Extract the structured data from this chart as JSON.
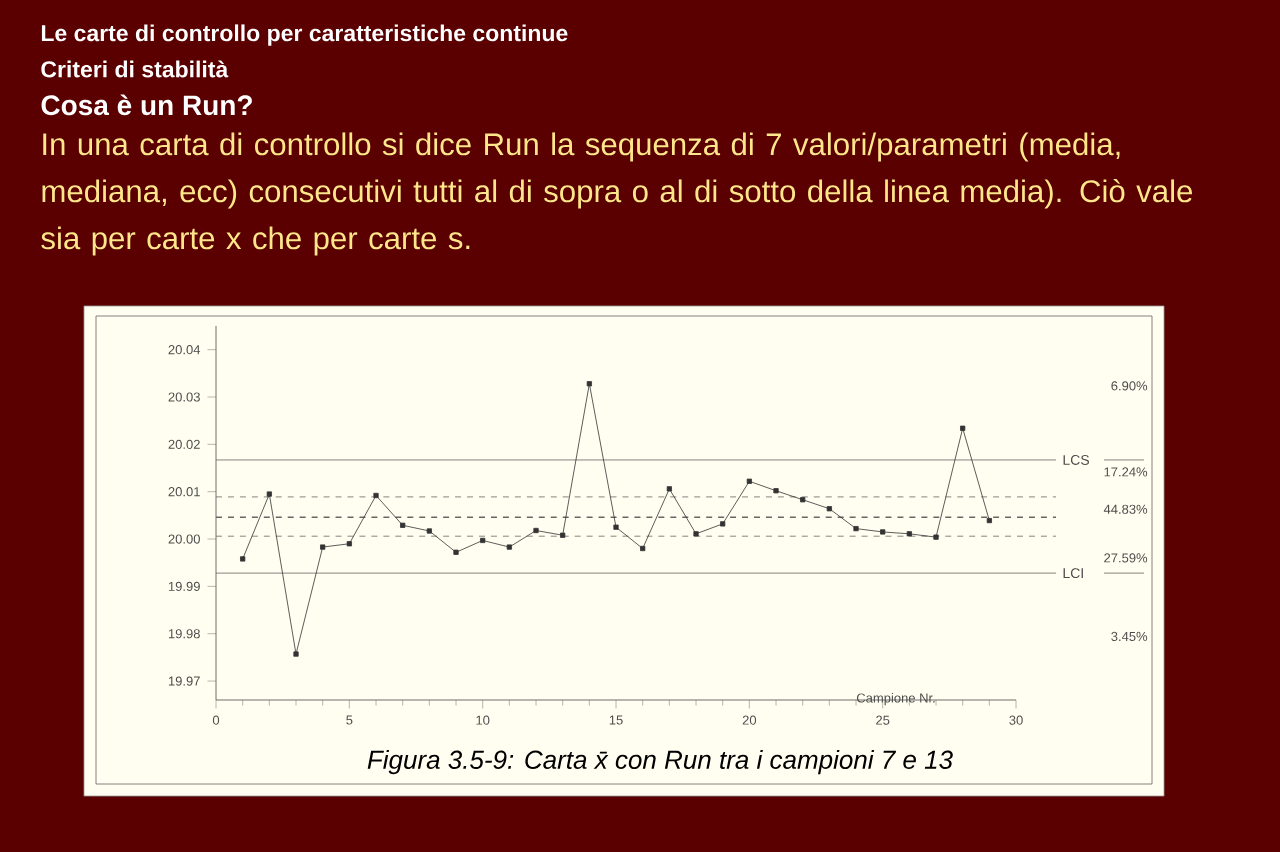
{
  "chart_data": {
    "type": "line",
    "title": "Le carte di controllo per caratteristiche continue",
    "subtitle": "Criteri di stabilità",
    "xlabel": "Campione Nr.",
    "x": [
      1,
      2,
      3,
      4,
      5,
      6,
      7,
      8,
      9,
      10,
      11,
      12,
      13,
      14,
      15,
      16,
      17,
      18,
      19,
      20,
      21,
      22,
      23,
      24,
      25,
      26,
      27,
      28,
      29
    ],
    "series": [
      {
        "color": "#333333",
        "values": [
          19.9958,
          20.0095,
          19.9757,
          19.9983,
          19.999,
          20.0092,
          20.0029,
          20.0017,
          19.9972,
          19.9997,
          19.9983,
          20.0018,
          20.0008,
          20.0328,
          20.0025,
          19.998,
          20.0106,
          20.0011,
          20.0032,
          20.0122,
          20.0102,
          20.0083,
          20.0064,
          20.0022,
          20.0015,
          20.0011,
          20.0004,
          20.0234,
          20.0039
        ]
      }
    ],
    "marker": "square",
    "line_style": "solid",
    "grid": false,
    "xlim": [
      0,
      30
    ],
    "xticks": [
      0,
      5,
      10,
      15,
      20,
      25,
      30
    ],
    "ylim": [
      19.966,
      20.045
    ],
    "yticks": [
      19.97,
      19.98,
      19.99,
      {
        "value": 20,
        "label": "20.00"
      },
      20.01,
      20.02,
      20.03,
      20.04
    ],
    "ref_lines": [
      {
        "axis": "y",
        "value": 20.0167,
        "label": "LCS",
        "line_style": "solid"
      },
      {
        "axis": "y",
        "value": 20.0089,
        "line_style": "dashed"
      },
      {
        "axis": "y",
        "value": 20.0046,
        "line_style": "dashed"
      },
      {
        "axis": "y",
        "value": 20.0006,
        "line_style": "dashed"
      },
      {
        "axis": "y",
        "value": 19.9928,
        "label": "LCI",
        "line_style": "solid"
      }
    ],
    "annotations": [
      "Cosa è un Run?",
      "In una carta di controllo si dice Run la sequenza di 7 valori/parametri (media, mediana, ecc) consecutivi tutti al di sopra o al di sotto della linea media). Ciò vale sia per carte x che per carte s.",
      "Figura 3.5-9:   Carta x̄  con Run tra i campioni 7 e 13",
      "6.90%",
      "17.24%",
      "44.83%",
      "27.59%",
      "3.45%"
    ]
  }
}
